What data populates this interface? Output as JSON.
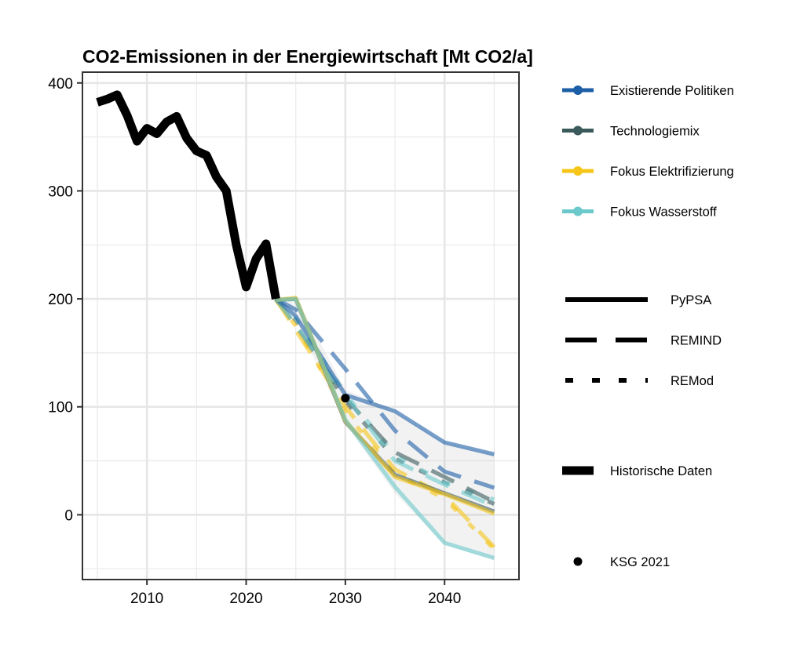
{
  "chart_data": {
    "type": "line",
    "title": "CO2-Emissionen in der Energiewirtschaft [Mt CO2/a]",
    "xlabel": "",
    "ylabel": "",
    "xlim": [
      2003.5,
      2047.5
    ],
    "ylim": [
      -60,
      410
    ],
    "x_ticks": [
      2010,
      2020,
      2030,
      2040
    ],
    "y_ticks": [
      0,
      100,
      200,
      300,
      400
    ],
    "grid": true,
    "legend_position": "right",
    "scenarios": [
      {
        "name": "Existierende Politiken",
        "color": "#1d5fa6"
      },
      {
        "name": "Technologiemix",
        "color": "#3b5a5b"
      },
      {
        "name": "Fokus Elektrifizierung",
        "color": "#f5c518"
      },
      {
        "name": "Fokus Wasserstoff",
        "color": "#6cc9cb"
      }
    ],
    "models": [
      {
        "name": "PyPSA",
        "style": "solid"
      },
      {
        "name": "REMIND",
        "style": "dashed"
      },
      {
        "name": "REMod",
        "style": "dotted"
      }
    ],
    "historical": {
      "name": "Historische Daten",
      "x": [
        2005,
        2006,
        2007,
        2008,
        2009,
        2010,
        2011,
        2012,
        2013,
        2014,
        2015,
        2016,
        2017,
        2018,
        2019,
        2020,
        2021,
        2022,
        2023
      ],
      "y": [
        382,
        385,
        389,
        370,
        346,
        358,
        353,
        364,
        369,
        349,
        337,
        333,
        313,
        300,
        250,
        211,
        237,
        251,
        200
      ]
    },
    "target": {
      "name": "KSG 2021",
      "x": 2030,
      "y": 108
    },
    "uncertainty_band": {
      "x": [
        2023,
        2025,
        2030,
        2035,
        2040,
        2045
      ],
      "upper": [
        200,
        202,
        116,
        96,
        67,
        56
      ],
      "lower": [
        200,
        180,
        84,
        20,
        -28,
        -42
      ]
    },
    "series": [
      {
        "scenario": "Existierende Politiken",
        "model": "PyPSA",
        "x": [
          2023,
          2025,
          2030,
          2035,
          2040,
          2045
        ],
        "y": [
          200,
          184,
          111,
          96,
          67,
          56
        ]
      },
      {
        "scenario": "Existierende Politiken",
        "model": "REMIND",
        "x": [
          2023,
          2025,
          2030,
          2035,
          2040,
          2045
        ],
        "y": [
          200,
          190,
          135,
          78,
          40,
          25
        ]
      },
      {
        "scenario": "Technologiemix",
        "model": "PyPSA",
        "x": [
          2023,
          2025,
          2030,
          2035,
          2040,
          2045
        ],
        "y": [
          199,
          200,
          86,
          37,
          20,
          3
        ]
      },
      {
        "scenario": "Technologiemix",
        "model": "REMIND",
        "x": [
          2023,
          2025,
          2030,
          2035,
          2040,
          2045
        ],
        "y": [
          200,
          175,
          108,
          58,
          35,
          12
        ]
      },
      {
        "scenario": "Technologiemix",
        "model": "REMod",
        "x": [
          2023,
          2025,
          2030,
          2035,
          2040,
          2045
        ],
        "y": [
          199,
          180,
          105,
          52,
          30,
          10
        ]
      },
      {
        "scenario": "Fokus Elektrifizierung",
        "model": "PyPSA",
        "x": [
          2023,
          2025,
          2030,
          2035,
          2040,
          2045
        ],
        "y": [
          199,
          201,
          87,
          35,
          19,
          1
        ]
      },
      {
        "scenario": "Fokus Elektrifizierung",
        "model": "REMIND",
        "x": [
          2023,
          2025,
          2030,
          2035,
          2040,
          2045
        ],
        "y": [
          200,
          171,
          100,
          42,
          18,
          -30
        ]
      },
      {
        "scenario": "Fokus Elektrifizierung",
        "model": "REMod",
        "x": [
          2023,
          2025,
          2030,
          2035,
          2040,
          2045
        ],
        "y": [
          199,
          175,
          95,
          38,
          15,
          -32
        ]
      },
      {
        "scenario": "Fokus Wasserstoff",
        "model": "PyPSA",
        "x": [
          2023,
          2025,
          2030,
          2035,
          2040,
          2045
        ],
        "y": [
          199,
          200,
          88,
          26,
          -26,
          -40
        ]
      },
      {
        "scenario": "Fokus Wasserstoff",
        "model": "REMIND",
        "x": [
          2023,
          2025,
          2030,
          2035,
          2040,
          2045
        ],
        "y": [
          200,
          176,
          110,
          50,
          28,
          8
        ]
      },
      {
        "scenario": "Fokus Wasserstoff",
        "model": "REMod",
        "x": [
          2023,
          2025,
          2030,
          2035,
          2040,
          2045
        ],
        "y": [
          199,
          182,
          112,
          55,
          30,
          14
        ]
      }
    ]
  }
}
